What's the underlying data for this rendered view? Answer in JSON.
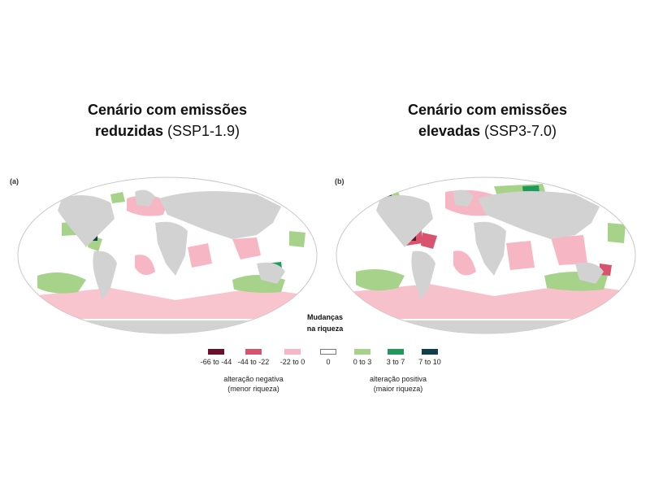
{
  "panels": [
    {
      "label": "(a)",
      "title_bold": "Cenário com emissões",
      "title_bold2": "reduzidas",
      "title_normal": "(SSP1-1.9)"
    },
    {
      "label": "(b)",
      "title_bold": "Cenário com emissões",
      "title_bold2": "elevadas",
      "title_normal": "(SSP3-7.0)"
    }
  ],
  "center_label": [
    "Mudanças",
    "na riqueza"
  ],
  "legend": {
    "items": [
      {
        "label": "-66 to -44",
        "color": "#6b0f2a"
      },
      {
        "label": "-44 to -22",
        "color": "#d9536f"
      },
      {
        "label": "-22 to 0",
        "color": "#f6b6c3"
      },
      {
        "label": "0",
        "color": "#ffffff"
      },
      {
        "label": "0 to 3",
        "color": "#a6d28a"
      },
      {
        "label": "3 to 7",
        "color": "#1f9a5a"
      },
      {
        "label": "7 to 10",
        "color": "#0e3f4a"
      }
    ],
    "negative_note": [
      "alteração negativa",
      "(menor riqueza)"
    ],
    "positive_note": [
      "alteração positiva",
      "(maior riqueza)"
    ]
  },
  "colors": {
    "land": "#d2d2d2",
    "ocean": "#ffffff",
    "outline": "#c8c8c8"
  }
}
